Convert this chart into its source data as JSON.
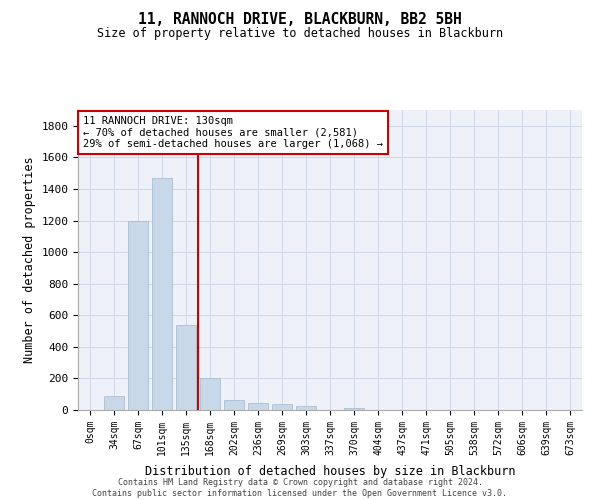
{
  "title": "11, RANNOCH DRIVE, BLACKBURN, BB2 5BH",
  "subtitle": "Size of property relative to detached houses in Blackburn",
  "xlabel": "Distribution of detached houses by size in Blackburn",
  "ylabel": "Number of detached properties",
  "bar_color": "#c8d8e8",
  "bar_edge_color": "#a0b8cc",
  "grid_color": "#d0d8e8",
  "background_color": "#eef2f8",
  "marker_color": "#cc0000",
  "annotation_box_color": "#cc0000",
  "categories": [
    "0sqm",
    "34sqm",
    "67sqm",
    "101sqm",
    "135sqm",
    "168sqm",
    "202sqm",
    "236sqm",
    "269sqm",
    "303sqm",
    "337sqm",
    "370sqm",
    "404sqm",
    "437sqm",
    "471sqm",
    "505sqm",
    "538sqm",
    "572sqm",
    "606sqm",
    "639sqm",
    "673sqm"
  ],
  "values": [
    0,
    90,
    1200,
    1470,
    540,
    205,
    65,
    45,
    35,
    28,
    0,
    15,
    0,
    0,
    0,
    0,
    0,
    0,
    0,
    0,
    0
  ],
  "ylim": [
    0,
    1900
  ],
  "yticks": [
    0,
    200,
    400,
    600,
    800,
    1000,
    1200,
    1400,
    1600,
    1800
  ],
  "property_line_x": 4.5,
  "annotation_text_line1": "11 RANNOCH DRIVE: 130sqm",
  "annotation_text_line2": "← 70% of detached houses are smaller (2,581)",
  "annotation_text_line3": "29% of semi-detached houses are larger (1,068) →",
  "footer_line1": "Contains HM Land Registry data © Crown copyright and database right 2024.",
  "footer_line2": "Contains public sector information licensed under the Open Government Licence v3.0."
}
